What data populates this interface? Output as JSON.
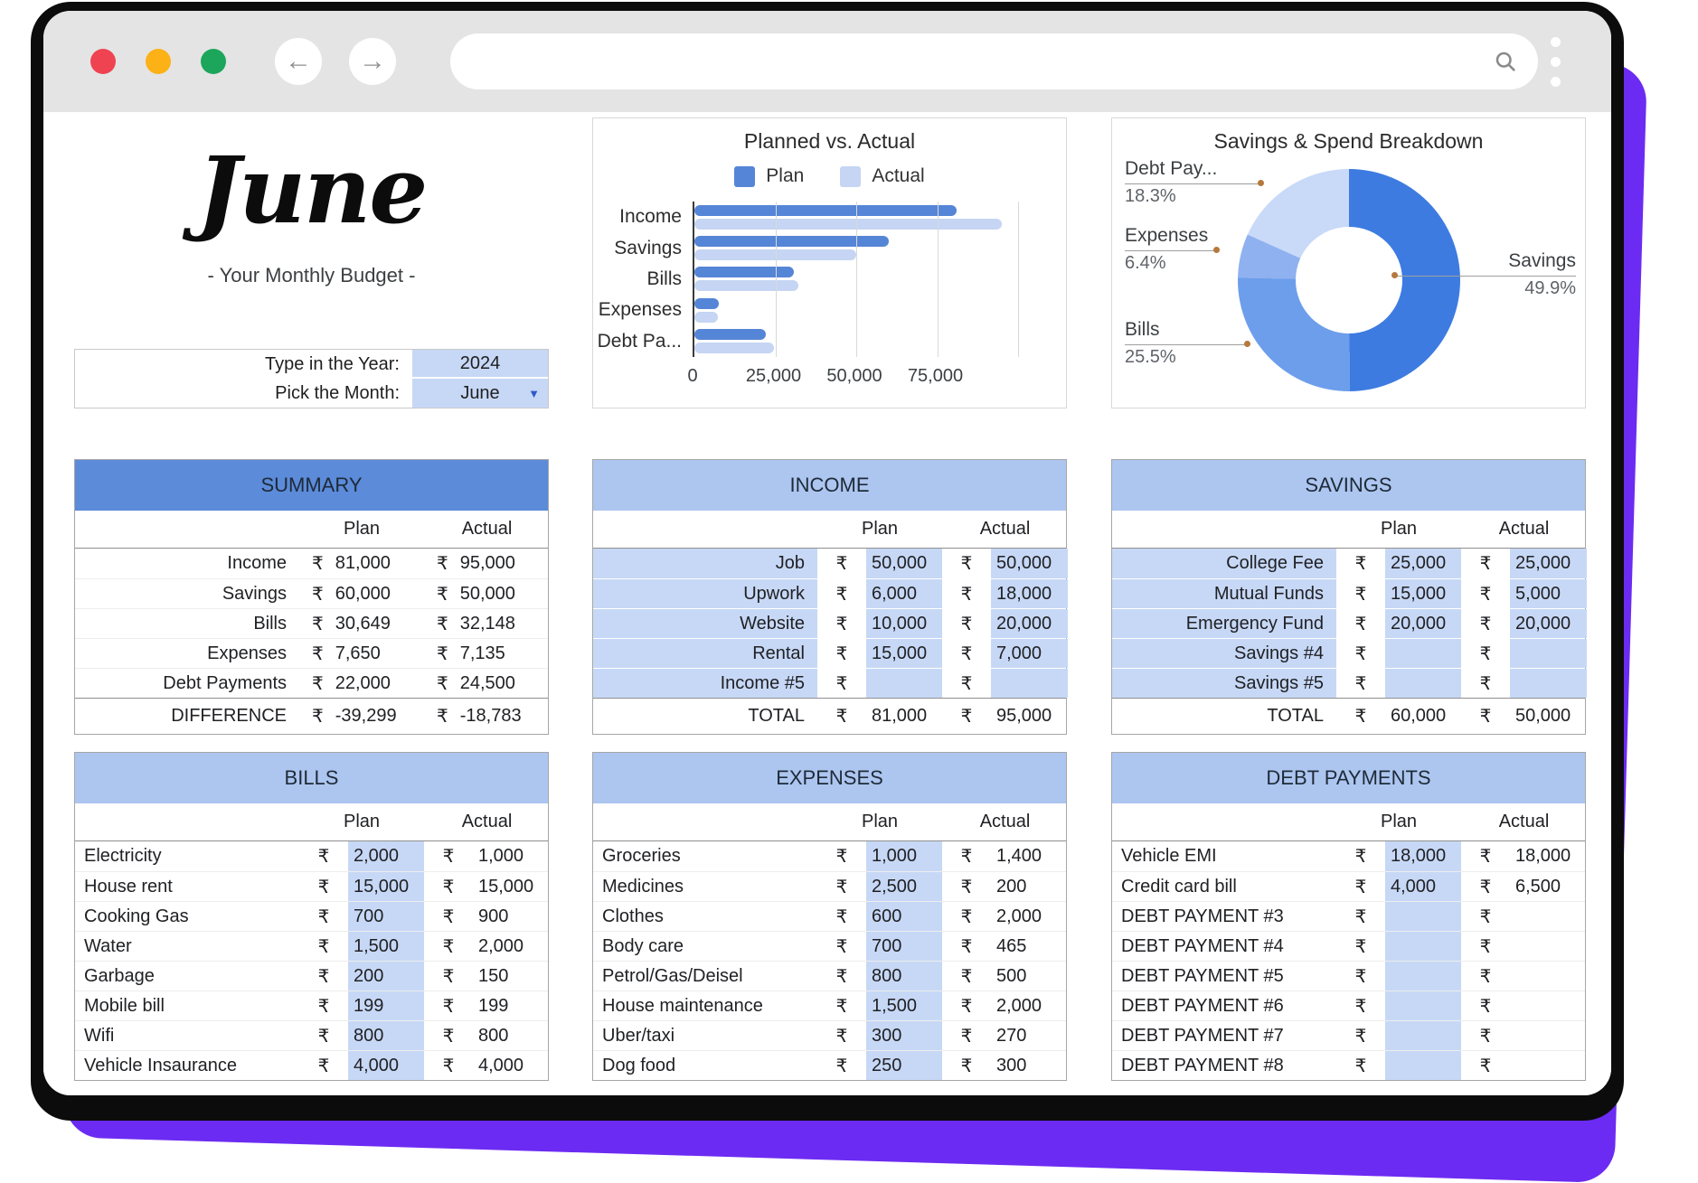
{
  "colors": {
    "accent_purple": "#6c2bf2",
    "chrome_gray": "#e4e4e4",
    "traffic_red": "#ef4352",
    "traffic_yellow": "#fcb117",
    "traffic_green": "#1ca65b",
    "table_header_dark": "#5b8bd9",
    "table_header_light": "#adc6f0",
    "cell_blue": "#c7d8f6",
    "plan_bar": "#5585d6",
    "actual_bar": "#c5d5f3"
  },
  "browser": {
    "back_icon": "←",
    "forward_icon": "→",
    "url_value": ""
  },
  "header": {
    "month": "June",
    "subtitle": "- Your Monthly Budget -"
  },
  "picker": {
    "year_label": "Type in the Year:",
    "year_value": "2024",
    "month_label": "Pick the Month:",
    "month_value": "June",
    "dropdown_icon": "▼"
  },
  "chart_data": [
    {
      "type": "bar",
      "orientation": "horizontal",
      "title": "Planned vs. Actual",
      "categories": [
        "Income",
        "Savings",
        "Bills",
        "Expenses",
        "Debt Pa..."
      ],
      "series": [
        {
          "name": "Plan",
          "color": "#5585d6",
          "values": [
            81000,
            60000,
            30649,
            7650,
            22000
          ]
        },
        {
          "name": "Actual",
          "color": "#c5d5f3",
          "values": [
            95000,
            50000,
            32148,
            7135,
            24500
          ]
        }
      ],
      "xlim": [
        0,
        100000
      ],
      "ticks": [
        {
          "value": 0,
          "label": "0"
        },
        {
          "value": 25000,
          "label": "25,000"
        },
        {
          "value": 50000,
          "label": "50,000"
        },
        {
          "value": 75000,
          "label": "75,000"
        },
        {
          "value": 100000,
          "label": ""
        }
      ],
      "grid": true,
      "legend_position": "top"
    },
    {
      "type": "pie",
      "donut": true,
      "title": "Savings & Spend Breakdown",
      "slices": [
        {
          "label": "Savings",
          "value": 49.9,
          "pct_label": "49.9%",
          "color": "#3d7be1"
        },
        {
          "label": "Bills",
          "value": 25.5,
          "pct_label": "25.5%",
          "color": "#6d9eeb"
        },
        {
          "label": "Expenses",
          "value": 6.4,
          "pct_label": "6.4%",
          "color": "#8fb1f0"
        },
        {
          "label": "Debt Pay...",
          "value": 18.3,
          "pct_label": "18.3%",
          "color": "#c9d9f8"
        }
      ],
      "legend_position": "none"
    }
  ],
  "tables": {
    "summary": {
      "title": "SUMMARY",
      "style": "summary",
      "currency": "₹",
      "columns": [
        "Plan",
        "Actual"
      ],
      "rows": [
        [
          "Income",
          "81,000",
          "95,000"
        ],
        [
          "Savings",
          "60,000",
          "50,000"
        ],
        [
          "Bills",
          "30,649",
          "32,148"
        ],
        [
          "Expenses",
          "7,650",
          "7,135"
        ],
        [
          "Debt Payments",
          "22,000",
          "24,500"
        ]
      ],
      "footer": [
        "DIFFERENCE",
        "-39,299",
        "-18,783"
      ]
    },
    "income": {
      "title": "INCOME",
      "style": "blue-labels",
      "currency": "₹",
      "columns": [
        "Plan",
        "Actual"
      ],
      "rows": [
        [
          "Job",
          "50,000",
          "50,000"
        ],
        [
          "Upwork",
          "6,000",
          "18,000"
        ],
        [
          "Website",
          "10,000",
          "20,000"
        ],
        [
          "Rental",
          "15,000",
          "7,000"
        ],
        [
          "Income #5",
          "",
          ""
        ]
      ],
      "footer": [
        "TOTAL",
        "81,000",
        "95,000"
      ]
    },
    "savings": {
      "title": "SAVINGS",
      "style": "blue-labels",
      "currency": "₹",
      "columns": [
        "Plan",
        "Actual"
      ],
      "rows": [
        [
          "College Fee",
          "25,000",
          "25,000"
        ],
        [
          "Mutual Funds",
          "15,000",
          "5,000"
        ],
        [
          "Emergency Fund",
          "20,000",
          "20,000"
        ],
        [
          "Savings #4",
          "",
          ""
        ],
        [
          "Savings #5",
          "",
          ""
        ]
      ],
      "footer": [
        "TOTAL",
        "60,000",
        "50,000"
      ]
    },
    "bills": {
      "title": "BILLS",
      "style": "blue-plan",
      "currency": "₹",
      "columns": [
        "Plan",
        "Actual"
      ],
      "rows": [
        [
          "Electricity",
          "2,000",
          "1,000"
        ],
        [
          "House rent",
          "15,000",
          "15,000"
        ],
        [
          "Cooking Gas",
          "700",
          "900"
        ],
        [
          "Water",
          "1,500",
          "2,000"
        ],
        [
          "Garbage",
          "200",
          "150"
        ],
        [
          "Mobile bill",
          "199",
          "199"
        ],
        [
          "Wifi",
          "800",
          "800"
        ],
        [
          "Vehicle Insaurance",
          "4,000",
          "4,000"
        ]
      ],
      "footer": null
    },
    "expenses": {
      "title": "EXPENSES",
      "style": "blue-plan",
      "currency": "₹",
      "columns": [
        "Plan",
        "Actual"
      ],
      "rows": [
        [
          "Groceries",
          "1,000",
          "1,400"
        ],
        [
          "Medicines",
          "2,500",
          "200"
        ],
        [
          "Clothes",
          "600",
          "2,000"
        ],
        [
          "Body care",
          "700",
          "465"
        ],
        [
          "Petrol/Gas/Deisel",
          "800",
          "500"
        ],
        [
          "House maintenance",
          "1,500",
          "2,000"
        ],
        [
          "Uber/taxi",
          "300",
          "270"
        ],
        [
          "Dog food",
          "250",
          "300"
        ]
      ],
      "footer": null
    },
    "debt": {
      "title": "DEBT PAYMENTS",
      "style": "blue-plan",
      "currency": "₹",
      "columns": [
        "Plan",
        "Actual"
      ],
      "rows": [
        [
          "Vehicle EMI",
          "18,000",
          "18,000"
        ],
        [
          "Credit card bill",
          "4,000",
          "6,500"
        ],
        [
          "DEBT PAYMENT #3",
          "",
          ""
        ],
        [
          "DEBT PAYMENT #4",
          "",
          ""
        ],
        [
          "DEBT PAYMENT #5",
          "",
          ""
        ],
        [
          "DEBT PAYMENT #6",
          "",
          ""
        ],
        [
          "DEBT PAYMENT #7",
          "",
          ""
        ],
        [
          "DEBT PAYMENT #8",
          "",
          ""
        ]
      ],
      "footer": null
    }
  }
}
